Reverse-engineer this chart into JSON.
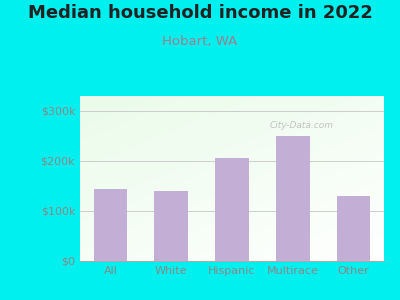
{
  "title": "Median household income in 2022",
  "subtitle": "Hobart, WA",
  "categories": [
    "All",
    "White",
    "Hispanic",
    "Multirace",
    "Other"
  ],
  "values": [
    145000,
    140000,
    205000,
    250000,
    130000
  ],
  "bar_color": "#c3aed6",
  "bg_outer": "#00f0f0",
  "bg_inner_colors": [
    "#e8f5e9",
    "#f5fff5",
    "#ffffff"
  ],
  "title_fontsize": 13,
  "subtitle_fontsize": 9.5,
  "title_color": "#222222",
  "subtitle_color": "#9e7e8e",
  "yticks": [
    0,
    100000,
    200000,
    300000
  ],
  "ytick_labels": [
    "$0",
    "$100k",
    "$200k",
    "$300k"
  ],
  "ylim": [
    0,
    330000
  ],
  "tick_color": "#888888",
  "watermark": "City-Data.com"
}
